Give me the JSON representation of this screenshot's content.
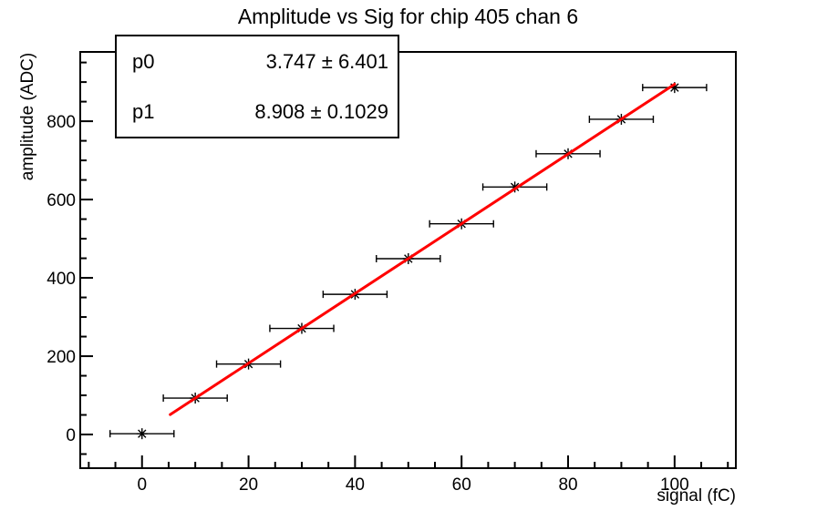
{
  "chart_data": {
    "type": "scatter",
    "title": "Amplitude vs Sig for chip 405 chan 6",
    "xlabel": "signal (fC)",
    "ylabel": "amplitude (ADC)",
    "x": [
      0,
      10,
      20,
      30,
      40,
      50,
      60,
      70,
      80,
      90,
      100
    ],
    "y": [
      2,
      93,
      180,
      271,
      358,
      449,
      538,
      632,
      717,
      805,
      886
    ],
    "xerr": 1.5,
    "xlim": [
      -11.6,
      111.5
    ],
    "ylim": [
      -86,
      977
    ],
    "x_major_ticks": [
      0,
      20,
      40,
      60,
      80,
      100
    ],
    "x_minor_step": 5,
    "y_major_ticks": [
      0,
      200,
      400,
      600,
      800
    ],
    "y_minor_step": 50,
    "grid": false,
    "legend_position": "none",
    "marker": "asterisk",
    "marker_color": "#000000",
    "axis_color": "#000000",
    "fit": {
      "p0": 3.747,
      "p1": 8.908,
      "x_start": 5.3,
      "x_end": 100,
      "color": "#ff0000"
    }
  },
  "stat_box": {
    "rows": [
      {
        "name": "p0",
        "value": "3.747 ± 6.401"
      },
      {
        "name": "p1",
        "value": "8.908 ± 0.1029"
      }
    ]
  }
}
